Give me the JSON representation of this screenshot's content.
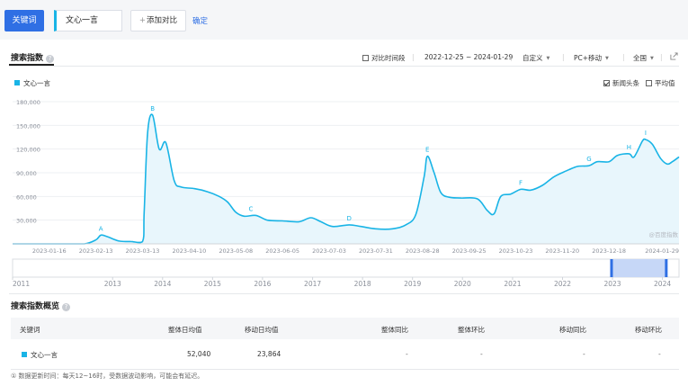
{
  "header": {
    "keyword_button": "关键词",
    "keyword_value": "文心一言",
    "add_compare": "添加对比",
    "add_plus": "+",
    "confirm": "确定"
  },
  "search_index": {
    "title": "搜索指数",
    "help": "?",
    "filters": {
      "compare_period": "对比时间段",
      "date_range": "2022-12-25 ~ 2024-01-29",
      "custom": "自定义",
      "device": "PC+移动",
      "region": "全国"
    },
    "legend": {
      "series_name": "文心一言",
      "news_headlines": "新闻头条",
      "average": "平均值"
    },
    "watermark": "@百度指数"
  },
  "colors": {
    "accent": "#2f6fe4",
    "series": "#19b4e6",
    "fill": "#e8f6fc"
  },
  "icons": {
    "export": "export-icon",
    "help": "help-icon",
    "info": "info-icon"
  },
  "chart_data": {
    "type": "area",
    "series": [
      {
        "name": "文心一言",
        "points": [
          [
            "2022-12-25",
            0
          ],
          [
            "2023-01-09",
            0
          ],
          [
            "2023-01-23",
            0
          ],
          [
            "2023-02-06",
            0
          ],
          [
            "2023-02-13",
            5000
          ],
          [
            "2023-02-16",
            11000
          ],
          [
            "2023-02-20",
            9000
          ],
          [
            "2023-02-27",
            3500
          ],
          [
            "2023-03-06",
            3000
          ],
          [
            "2023-03-13",
            3000
          ],
          [
            "2023-03-14",
            40000
          ],
          [
            "2023-03-16",
            140000
          ],
          [
            "2023-03-19",
            163000
          ],
          [
            "2023-03-23",
            120000
          ],
          [
            "2023-03-27",
            128000
          ],
          [
            "2023-04-01",
            80000
          ],
          [
            "2023-04-05",
            72000
          ],
          [
            "2023-04-13",
            70000
          ],
          [
            "2023-04-21",
            66000
          ],
          [
            "2023-04-28",
            60000
          ],
          [
            "2023-05-03",
            53000
          ],
          [
            "2023-05-08",
            40000
          ],
          [
            "2023-05-13",
            35000
          ],
          [
            "2023-05-20",
            36000
          ],
          [
            "2023-05-27",
            30000
          ],
          [
            "2023-06-05",
            29000
          ],
          [
            "2023-06-15",
            28000
          ],
          [
            "2023-06-22",
            33000
          ],
          [
            "2023-06-28",
            28000
          ],
          [
            "2023-07-05",
            22000
          ],
          [
            "2023-07-15",
            24000
          ],
          [
            "2023-07-22",
            22000
          ],
          [
            "2023-07-31",
            19000
          ],
          [
            "2023-08-10",
            19000
          ],
          [
            "2023-08-18",
            24000
          ],
          [
            "2023-08-24",
            37000
          ],
          [
            "2023-08-29",
            85000
          ],
          [
            "2023-08-31",
            111000
          ],
          [
            "2023-09-04",
            90000
          ],
          [
            "2023-09-08",
            65000
          ],
          [
            "2023-09-13",
            59000
          ],
          [
            "2023-09-20",
            58000
          ],
          [
            "2023-09-30",
            57000
          ],
          [
            "2023-10-06",
            42000
          ],
          [
            "2023-10-10",
            38000
          ],
          [
            "2023-10-14",
            60000
          ],
          [
            "2023-10-20",
            63000
          ],
          [
            "2023-10-26",
            69000
          ],
          [
            "2023-11-01",
            68000
          ],
          [
            "2023-11-08",
            74000
          ],
          [
            "2023-11-15",
            85000
          ],
          [
            "2023-11-22",
            92000
          ],
          [
            "2023-11-29",
            98000
          ],
          [
            "2023-12-06",
            99000
          ],
          [
            "2023-12-11",
            104000
          ],
          [
            "2023-12-18",
            104000
          ],
          [
            "2023-12-23",
            112000
          ],
          [
            "2023-12-30",
            114000
          ],
          [
            "2024-01-02",
            110000
          ],
          [
            "2024-01-07",
            130000
          ],
          [
            "2024-01-09",
            132000
          ],
          [
            "2024-01-13",
            126000
          ],
          [
            "2024-01-18",
            108000
          ],
          [
            "2024-01-22",
            101000
          ],
          [
            "2024-01-25",
            104000
          ],
          [
            "2024-01-29",
            110000
          ]
        ]
      }
    ],
    "annotations": [
      {
        "label": "A",
        "x": "2023-02-16",
        "y": 11000
      },
      {
        "label": "B",
        "x": "2023-03-19",
        "y": 163000
      },
      {
        "label": "C",
        "x": "2023-05-17",
        "y": 36000
      },
      {
        "label": "D",
        "x": "2023-07-15",
        "y": 24000
      },
      {
        "label": "E",
        "x": "2023-08-31",
        "y": 111000
      },
      {
        "label": "F",
        "x": "2023-10-26",
        "y": 69000
      },
      {
        "label": "G",
        "x": "2023-12-06",
        "y": 99000
      },
      {
        "label": "H",
        "x": "2023-12-30",
        "y": 114000
      },
      {
        "label": "I",
        "x": "2024-01-09",
        "y": 132000
      }
    ],
    "xlim": [
      "2022-12-25",
      "2024-01-29"
    ],
    "ylim": [
      0,
      180000
    ],
    "y_ticks": [
      {
        "v": 30000,
        "label": "30,000"
      },
      {
        "v": 60000,
        "label": "60,000"
      },
      {
        "v": 90000,
        "label": "90,000"
      },
      {
        "v": 120000,
        "label": "120,000"
      },
      {
        "v": 150000,
        "label": "150,000"
      },
      {
        "v": 180000,
        "label": "180,000"
      }
    ],
    "x_ticks": [
      "2023-01-16",
      "2023-02-13",
      "2023-03-13",
      "2023-04-10",
      "2023-05-08",
      "2023-06-05",
      "2023-07-03",
      "2023-07-31",
      "2023-08-28",
      "2023-09-25",
      "2023-10-23",
      "2023-11-20",
      "2023-12-18",
      "2024-01-29"
    ],
    "navigator": {
      "years": [
        "2011",
        "2013",
        "2014",
        "2015",
        "2016",
        "2017",
        "2018",
        "2019",
        "2020",
        "2021",
        "2022",
        "2023",
        "2024"
      ],
      "selected_range": [
        "2022-12-25",
        "2024-01-29"
      ]
    },
    "grid": true,
    "legend_position": "top-left"
  },
  "overview": {
    "title": "搜索指数概览",
    "help": "?",
    "columns": [
      "关键词",
      "整体日均值",
      "移动日均值",
      "整体同比",
      "整体环比",
      "移动同比",
      "移动环比"
    ],
    "rows": [
      {
        "keyword": "文心一言",
        "overall_avg": "52,040",
        "mobile_avg": "23,864",
        "overall_yoy": "-",
        "overall_qoq": "-",
        "mobile_yoy": "-",
        "mobile_qoq": "-"
      }
    ],
    "note_icon": "①",
    "note": "数据更新时间：每天12~16时，受数据波动影响，可能会有延迟。"
  }
}
